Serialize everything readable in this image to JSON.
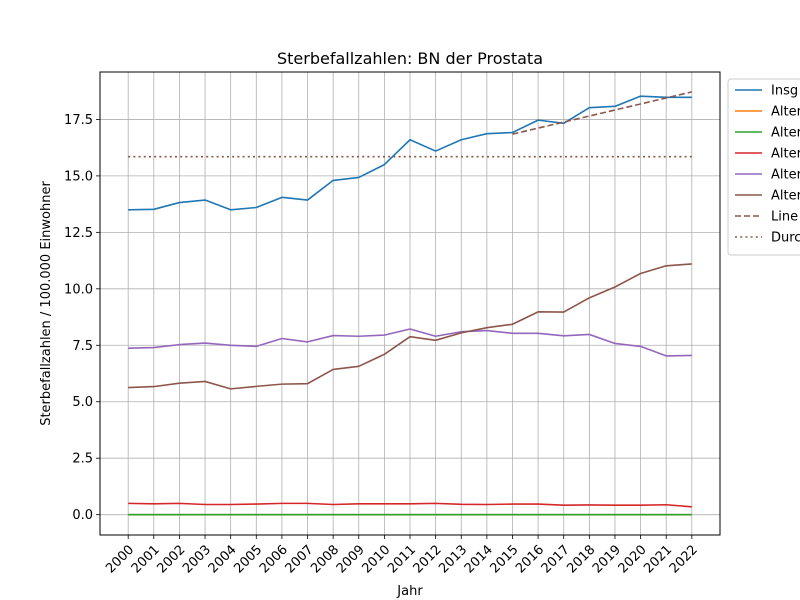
{
  "chart_data": {
    "type": "line",
    "title": "Sterbefallzahlen: BN der Prostata",
    "xlabel": "Jahr",
    "ylabel": "Sterbefallzahlen / 100.000 Einwohner",
    "x": [
      2000,
      2001,
      2002,
      2003,
      2004,
      2005,
      2006,
      2007,
      2008,
      2009,
      2010,
      2011,
      2012,
      2013,
      2014,
      2015,
      2016,
      2017,
      2018,
      2019,
      2020,
      2021,
      2022
    ],
    "x_tick_labels": [
      "2000",
      "2001",
      "2002",
      "2003",
      "2004",
      "2005",
      "2006",
      "2007",
      "2008",
      "2009",
      "2010",
      "2011",
      "2012",
      "2013",
      "2014",
      "2015",
      "2016",
      "2017",
      "2018",
      "2019",
      "2020",
      "2021",
      "2022"
    ],
    "ylim": [
      -0.9,
      19.6
    ],
    "y_ticks": [
      0.0,
      2.5,
      5.0,
      7.5,
      10.0,
      12.5,
      15.0,
      17.5
    ],
    "y_tick_labels": [
      "0.0",
      "2.5",
      "5.0",
      "7.5",
      "10.0",
      "12.5",
      "15.0",
      "17.5"
    ],
    "grid": true,
    "legend_position": "outside-top-right",
    "series": [
      {
        "name": "Insg",
        "color": "#1f77b4",
        "style": "solid",
        "values": [
          13.5,
          13.52,
          13.82,
          13.93,
          13.5,
          13.6,
          14.05,
          13.93,
          14.8,
          14.93,
          15.5,
          16.6,
          16.1,
          16.6,
          16.87,
          16.92,
          17.47,
          17.33,
          18.02,
          18.08,
          18.53,
          18.48,
          18.48
        ]
      },
      {
        "name": "Alter",
        "color": "#ff7f0e",
        "style": "solid",
        "values": [
          0,
          0,
          0,
          0,
          0,
          0,
          0,
          0,
          0,
          0,
          0,
          0,
          0,
          0,
          0,
          0,
          0,
          0,
          0,
          0,
          0,
          0,
          0
        ]
      },
      {
        "name": "Alter",
        "color": "#2ca02c",
        "style": "solid",
        "values": [
          0,
          0,
          0,
          0,
          0,
          0,
          0,
          0,
          0,
          0,
          0,
          0,
          0,
          0,
          0,
          0,
          0,
          0,
          0,
          0,
          0,
          0,
          0
        ]
      },
      {
        "name": "Alter",
        "color": "#d62728",
        "style": "solid",
        "values": [
          0.5,
          0.48,
          0.5,
          0.45,
          0.45,
          0.47,
          0.5,
          0.5,
          0.45,
          0.48,
          0.48,
          0.48,
          0.5,
          0.46,
          0.45,
          0.47,
          0.47,
          0.42,
          0.43,
          0.42,
          0.42,
          0.44,
          0.35
        ]
      },
      {
        "name": "Alter",
        "color": "#9467bd",
        "style": "solid",
        "values": [
          7.37,
          7.4,
          7.53,
          7.6,
          7.5,
          7.45,
          7.8,
          7.65,
          7.93,
          7.9,
          7.95,
          8.22,
          7.9,
          8.1,
          8.15,
          8.03,
          8.03,
          7.92,
          7.98,
          7.58,
          7.45,
          7.03,
          7.05
        ]
      },
      {
        "name": "Alter",
        "color": "#8c564b",
        "style": "solid",
        "values": [
          5.63,
          5.67,
          5.82,
          5.9,
          5.57,
          5.68,
          5.78,
          5.8,
          6.43,
          6.57,
          7.1,
          7.88,
          7.72,
          8.05,
          8.28,
          8.43,
          8.98,
          8.97,
          9.6,
          10.08,
          10.68,
          11.02,
          11.1
        ]
      },
      {
        "name": "Line",
        "color": "#8c564b",
        "style": "dashed",
        "x_range": [
          2015,
          2022
        ],
        "values_endpoints": [
          16.85,
          18.72
        ]
      },
      {
        "name": "Durc",
        "color": "#8c564b",
        "style": "dotted",
        "x_range": [
          2000,
          2022
        ],
        "values_endpoints": [
          15.85,
          15.85
        ]
      }
    ]
  }
}
